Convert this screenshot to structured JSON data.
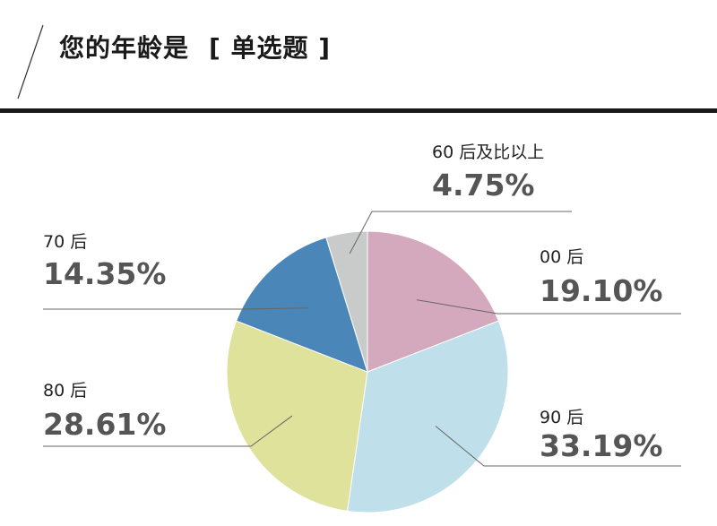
{
  "header": {
    "title": "您的年龄是",
    "tag": "[ 单选题 ]"
  },
  "chart_data": {
    "type": "pie",
    "title": "您的年龄是",
    "slices": [
      {
        "label": "00 后",
        "value": 19.1,
        "display": "19.10%",
        "color": "#d4a9bd"
      },
      {
        "label": "90 后",
        "value": 33.19,
        "display": "33.19%",
        "color": "#bfdfea"
      },
      {
        "label": "80 后",
        "value": 28.61,
        "display": "28.61%",
        "color": "#dfe29a"
      },
      {
        "label": "70 后",
        "value": 14.35,
        "display": "14.35%",
        "color": "#4a87b8"
      },
      {
        "label": "60 后及比以上",
        "value": 4.75,
        "display": "4.75%",
        "color": "#c9cbcb"
      }
    ],
    "start_angle": "12 o'clock",
    "direction": "clockwise"
  }
}
